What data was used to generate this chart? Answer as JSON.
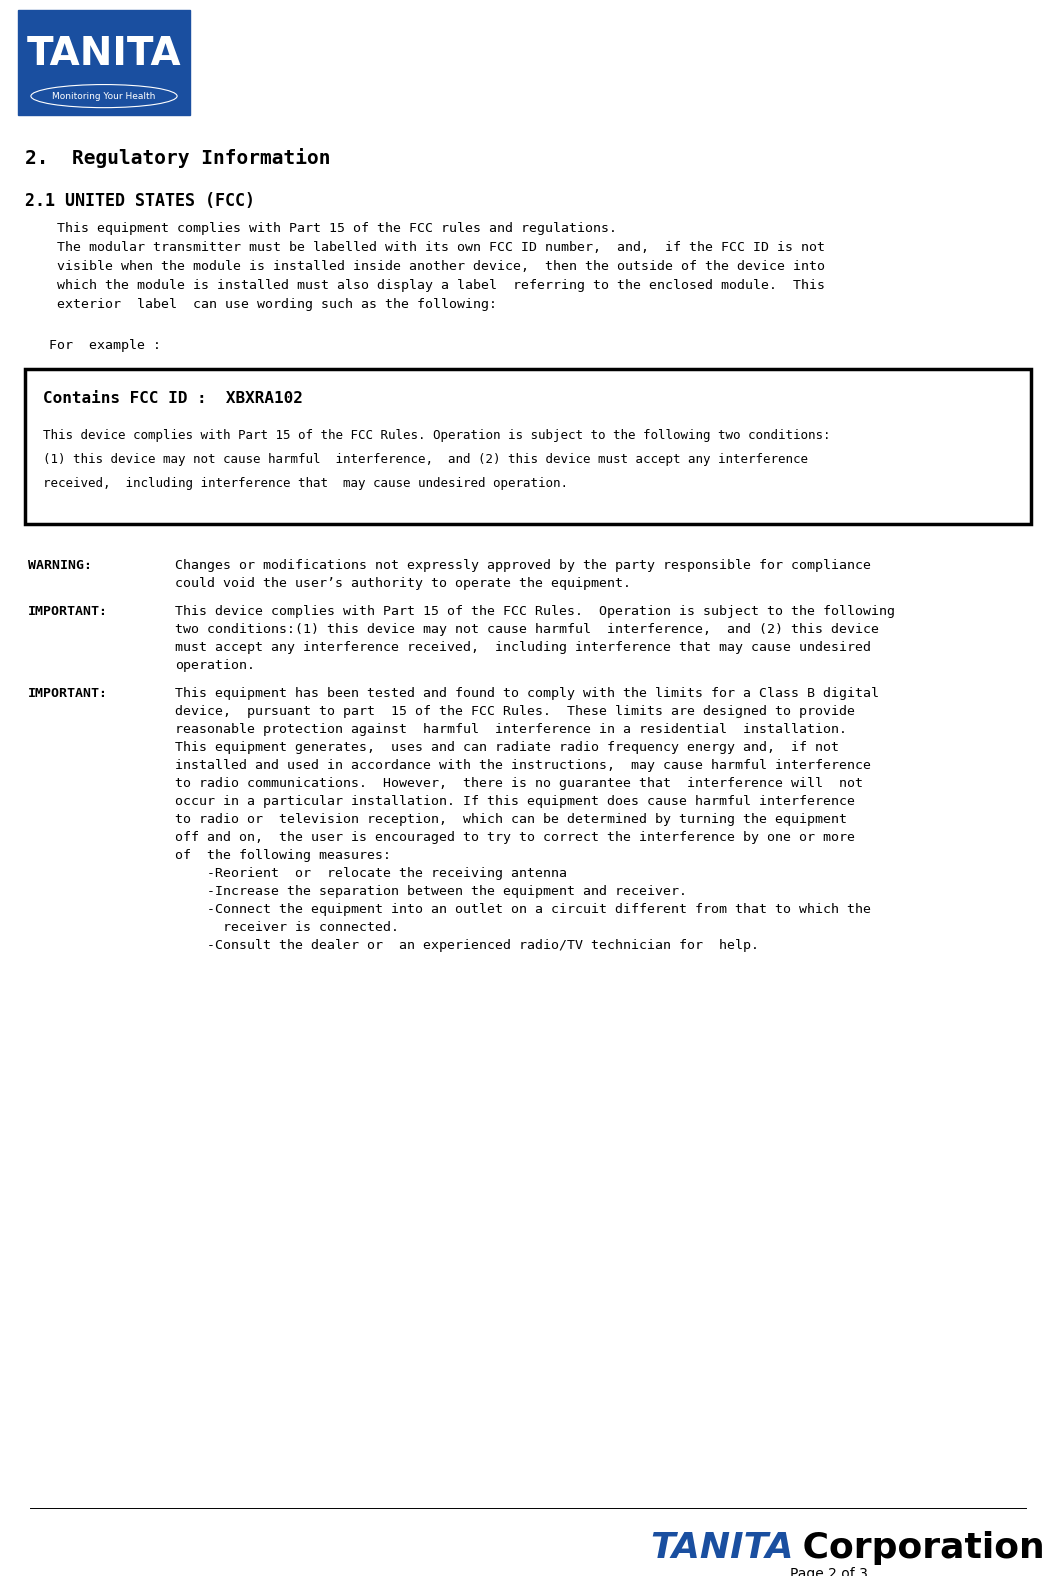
{
  "page_bg": "#ffffff",
  "logo_bg": "#1a4fa0",
  "logo_text": "TANITA",
  "logo_subtitle": "Monitoring Your Health",
  "section_title": "2.  Regulatory Information",
  "subsection_title": "2.1 UNITED STATES (FCC)",
  "body_indent_lines": [
    "    This equipment complies with Part 15 of the FCC rules and regulations.",
    "    The modular transmitter must be labelled with its own FCC ID number,  and,  if the FCC ID is not",
    "    visible when the module is installed inside another device,  then the outside of the device into",
    "    which the module is installed must also display a label  referring to the enclosed module.  This",
    "    exterior  label  can use wording such as the following:"
  ],
  "for_example_line": "   For  example :",
  "box_title": "Contains FCC ID :  XBXRA102",
  "box_body_lines": [
    "This device complies with Part 15 of the FCC Rules. Operation is subject to the following two conditions:",
    "(1) this device may not cause harmful  interference,  and (2) this device must accept any interference",
    "received,  including interference that  may cause undesired operation."
  ],
  "warning_blocks": [
    {
      "label": "WARNING:  ",
      "lines": [
        "Changes or modifications not expressly approved by the party responsible for compliance",
        "could void the user’s authority to operate the equipment."
      ]
    },
    {
      "label": "IMPORTANT:",
      "lines": [
        "This device complies with Part 15 of the FCC Rules.  Operation is subject to the following",
        "two conditions:(1) this device may not cause harmful  interference,  and (2) this device",
        "must accept any interference received,  including interference that may cause undesired",
        "operation."
      ]
    },
    {
      "label": "IMPORTANT:",
      "lines": [
        "This equipment has been tested and found to comply with the limits for a Class B digital",
        "device,  pursuant to part  15 of the FCC Rules.  These limits are designed to provide",
        "reasonable protection against  harmful  interference in a residential  installation.",
        "This equipment generates,  uses and can radiate radio frequency energy and,  if not",
        "installed and used in accordance with the instructions,  may cause harmful interference",
        "to radio communications.  However,  there is no guarantee that  interference will  not",
        "occur in a particular installation. If this equipment does cause harmful interference",
        "to radio or  television reception,  which can be determined by turning the equipment",
        "off and on,  the user is encouraged to try to correct the interference by one or more",
        "of  the following measures:",
        "    -Reorient  or  relocate the receiving antenna",
        "    -Increase the separation between the equipment and receiver.",
        "    -Connect the equipment into an outlet on a circuit different from that to which the",
        "      receiver is connected.",
        "    -Consult the dealer or  an experienced radio/TV technician for  help."
      ]
    }
  ],
  "footer_page": "Page 2 of 3"
}
